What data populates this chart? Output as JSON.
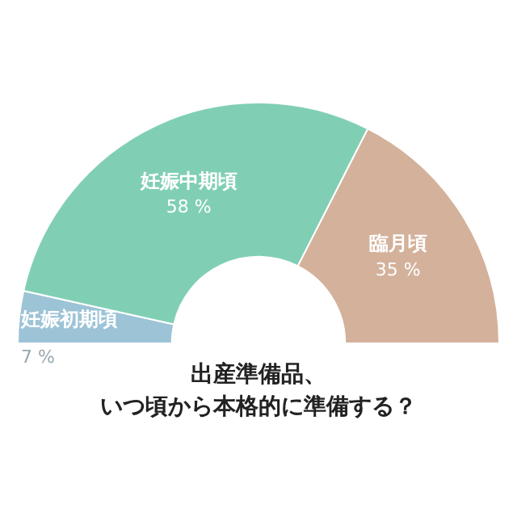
{
  "chart_data": {
    "type": "donut",
    "title": "出産準備品、いつ頃から本格的に準備する？",
    "categories": [
      "妊娠初期頃",
      "妊娠中期頃",
      "臨月頃"
    ],
    "values": [
      7,
      58,
      35
    ],
    "value_labels": [
      "7 %",
      "58 %",
      "35 %"
    ],
    "colors": [
      "#9dc3d6",
      "#80cfb5",
      "#d3b19b"
    ],
    "legend": false
  }
}
